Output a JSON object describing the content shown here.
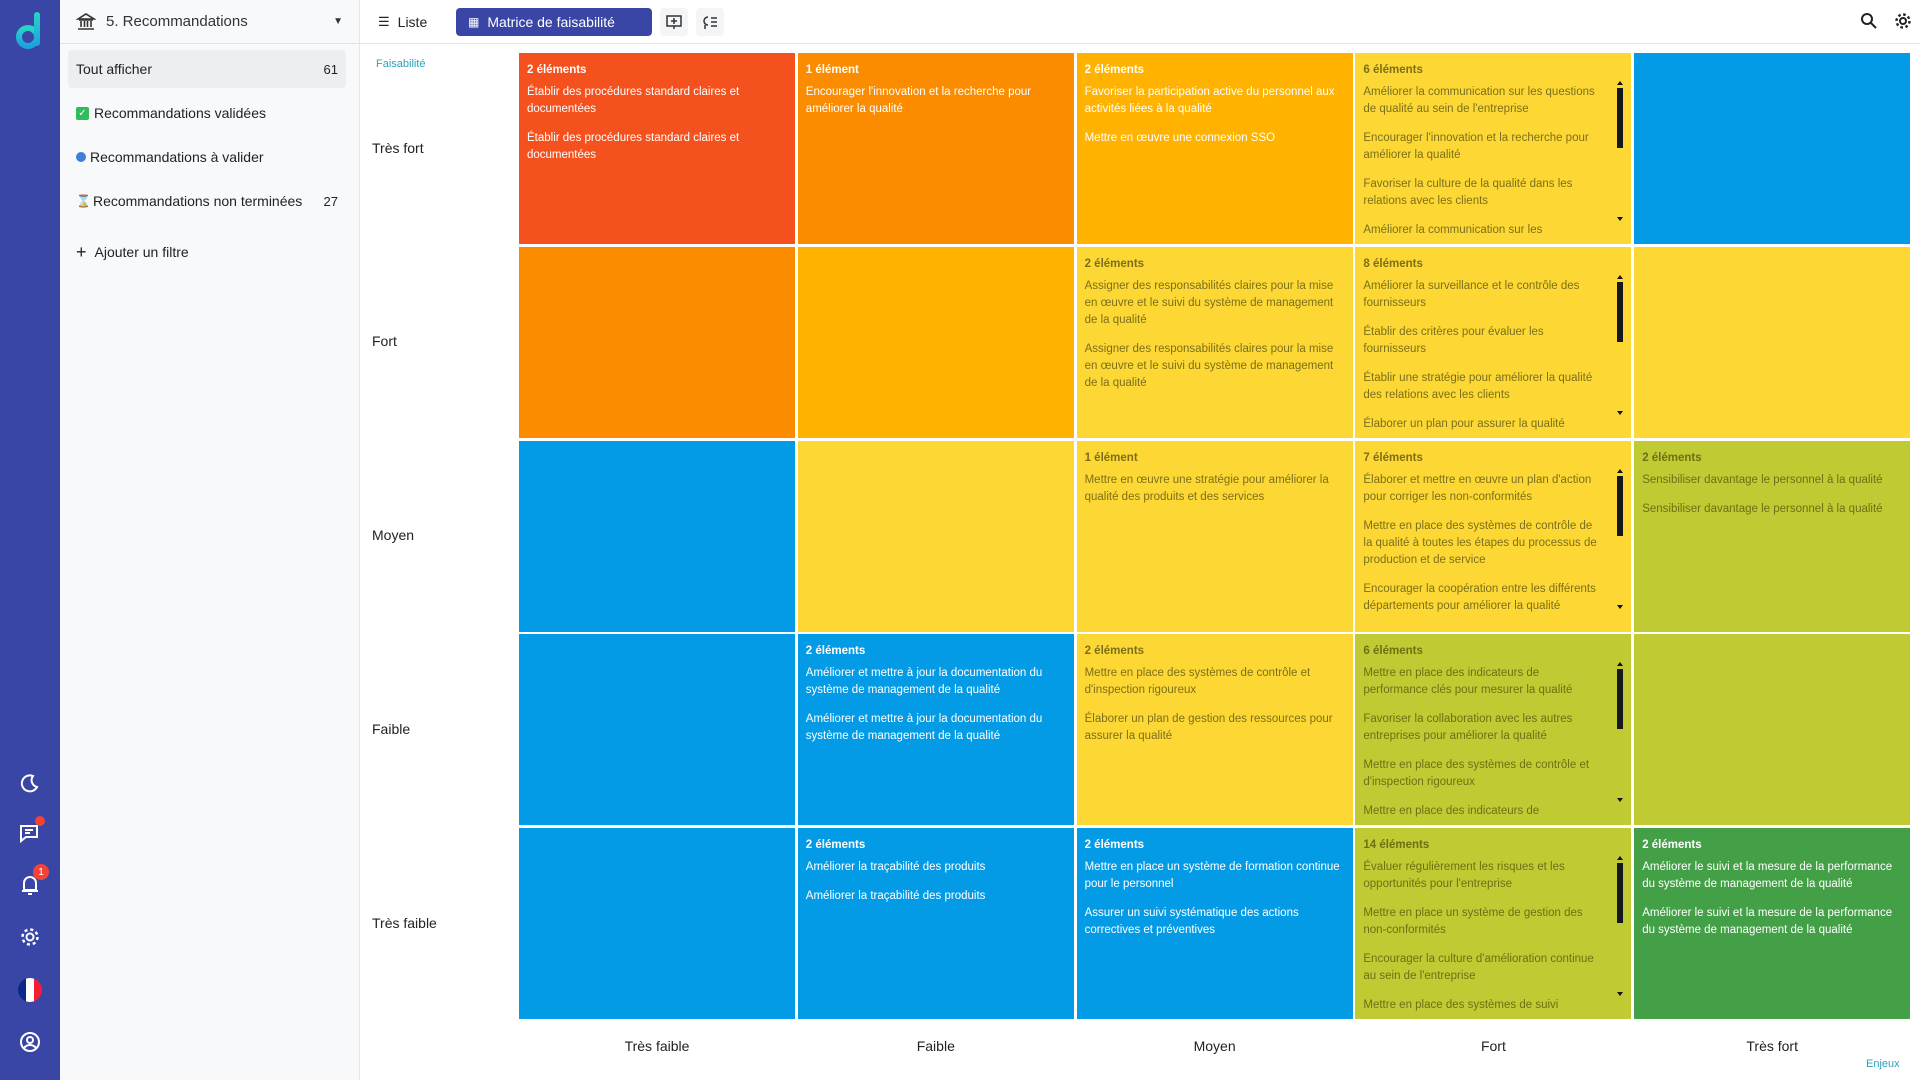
{
  "sidebar": {
    "title": "5. Recommandations",
    "items": [
      {
        "label": "Tout afficher",
        "count": "61",
        "icon": "none"
      },
      {
        "label": "Recommandations validées",
        "count": "",
        "icon": "check-box-icon"
      },
      {
        "label": "Recommandations à valider",
        "count": "",
        "icon": "magnifier-icon"
      },
      {
        "label": "Recommandations non terminées",
        "count": "27",
        "icon": "hourglass-icon"
      }
    ],
    "add_filter": "Ajouter un filtre"
  },
  "rail": {
    "notification_badge": "1"
  },
  "toolbar": {
    "list_tab": "Liste",
    "matrix_tab": "Matrice de faisabilité"
  },
  "matrix": {
    "y_axis": "Faisabilité",
    "x_axis": "Enjeux",
    "columns": [
      "Très faible",
      "Faible",
      "Moyen",
      "Fort",
      "Très fort"
    ],
    "colors": {
      "red": "#f4511e",
      "orange": "#fb8c00",
      "amber": "#ffb300",
      "yellow": "#fdd835",
      "lime": "#c0ca33",
      "green": "#43a047",
      "blue": "#039be5"
    },
    "rows": [
      {
        "label": "Très fort",
        "cells": [
          {
            "color": "red",
            "count": "2 éléments",
            "items": [
              "Établir des procédures standard claires et documentées",
              "Établir des procédures standard claires et documentées"
            ]
          },
          {
            "color": "orange",
            "count": "1 élément",
            "items": [
              "Encourager l'innovation et la recherche pour améliorer la qualité"
            ]
          },
          {
            "color": "amber",
            "count": "2 éléments",
            "items": [
              "Favoriser la participation active du personnel aux activités liées à la qualité",
              "Mettre en œuvre une connexion SSO"
            ]
          },
          {
            "color": "yellow",
            "count": "6 éléments",
            "scroll": true,
            "items": [
              "Améliorer la communication sur les questions de qualité au sein de l'entreprise",
              "Encourager l'innovation et la recherche pour améliorer la qualité",
              "Favoriser la culture de la qualité dans les relations avec les clients",
              "Améliorer la communication sur les"
            ]
          },
          {
            "color": "blue",
            "count": "",
            "items": []
          }
        ]
      },
      {
        "label": "Fort",
        "cells": [
          {
            "color": "orange",
            "count": "",
            "items": []
          },
          {
            "color": "amber",
            "count": "",
            "items": []
          },
          {
            "color": "yellow",
            "count": "2 éléments",
            "items": [
              "Assigner des responsabilités claires pour la mise en œuvre et le suivi du système de management de la qualité",
              "Assigner des responsabilités claires pour la mise en œuvre et le suivi du système de management de la qualité"
            ]
          },
          {
            "color": "yellow",
            "count": "8 éléments",
            "scroll": true,
            "items": [
              "Améliorer la surveillance et le contrôle des fournisseurs",
              "Établir des critères pour évaluer les fournisseurs",
              "Établir une stratégie pour améliorer la qualité des relations avec les clients",
              "Élaborer un plan pour assurer la qualité"
            ]
          },
          {
            "color": "yellow",
            "count": "",
            "items": []
          }
        ]
      },
      {
        "label": "Moyen",
        "cells": [
          {
            "color": "blue",
            "count": "",
            "items": []
          },
          {
            "color": "yellow",
            "count": "",
            "items": []
          },
          {
            "color": "yellow",
            "count": "1 élément",
            "items": [
              "Mettre en œuvre une stratégie pour améliorer la qualité des produits et des services"
            ]
          },
          {
            "color": "yellow",
            "count": "7 éléments",
            "scroll": true,
            "items": [
              "Élaborer et mettre en œuvre un plan d'action pour corriger les non-conformités",
              "Mettre en place des systèmes de contrôle de la qualité à toutes les étapes du processus de production et de service",
              "Encourager la coopération entre les différents départements pour améliorer la qualité"
            ]
          },
          {
            "color": "lime",
            "count": "2 éléments",
            "items": [
              "Sensibiliser davantage le personnel à la qualité",
              "Sensibiliser davantage le personnel à la qualité"
            ]
          }
        ]
      },
      {
        "label": "Faible",
        "cells": [
          {
            "color": "blue",
            "count": "",
            "items": []
          },
          {
            "color": "blue",
            "count": "2 éléments",
            "items": [
              "Améliorer et mettre à jour la documentation du système de management de la qualité",
              "Améliorer et mettre à jour la documentation du système de management de la qualité"
            ]
          },
          {
            "color": "yellow",
            "count": "2 éléments",
            "items": [
              "Mettre en place des systèmes de contrôle et d'inspection rigoureux",
              "Élaborer un plan de gestion des ressources pour assurer la qualité"
            ]
          },
          {
            "color": "lime",
            "count": "6 éléments",
            "scroll": true,
            "items": [
              "Mettre en place des indicateurs de performance clés pour mesurer la qualité",
              "Favoriser la collaboration avec les autres entreprises pour améliorer la qualité",
              "Mettre en place des systèmes de contrôle et d'inspection rigoureux",
              "Mettre en place des indicateurs de"
            ]
          },
          {
            "color": "lime",
            "count": "",
            "items": []
          }
        ]
      },
      {
        "label": "Très faible",
        "cells": [
          {
            "color": "blue",
            "count": "",
            "items": []
          },
          {
            "color": "blue",
            "count": "2 éléments",
            "items": [
              "Améliorer la traçabilité des produits",
              "Améliorer la traçabilité des produits"
            ]
          },
          {
            "color": "blue",
            "count": "2 éléments",
            "items": [
              "Mettre en place un système de formation continue pour le personnel",
              "Assurer un suivi systématique des actions correctives et préventives"
            ]
          },
          {
            "color": "lime",
            "count": "14 éléments",
            "scroll": true,
            "items": [
              "Évaluer régulièrement les risques et les opportunités pour l'entreprise",
              "Mettre en place un système de gestion des non-conformités",
              "Encourager la culture d'amélioration continue au sein de l'entreprise",
              "Mettre en place des systèmes de suivi"
            ]
          },
          {
            "color": "green",
            "count": "2 éléments",
            "items": [
              "Améliorer le suivi et la mesure de la performance du système de management de la qualité",
              "Améliorer le suivi et la mesure de la performance du système de management de la qualité"
            ]
          }
        ]
      }
    ]
  }
}
